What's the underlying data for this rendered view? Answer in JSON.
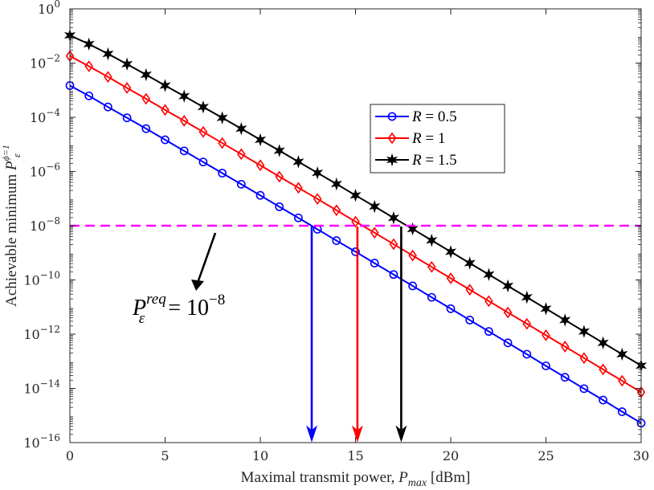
{
  "chart_data": {
    "type": "line",
    "y_scale": "log",
    "xlabel": "Maximal transmit power, P_max [dBm]",
    "xlabel_parts": {
      "pre": "Maximal transmit power, ",
      "var": "P",
      "sub": "max",
      "post": " [dBm]"
    },
    "ylabel_parts": {
      "pre": "Achievable minimum ",
      "var": "P",
      "sub": "ε",
      "sup": "ϕ=1"
    },
    "xlim": [
      0,
      30
    ],
    "ylim_exp": [
      -16,
      0
    ],
    "x_ticks": [
      0,
      5,
      10,
      15,
      20,
      25,
      30
    ],
    "y_tick_exps": [
      0,
      -2,
      -4,
      -6,
      -8,
      -10,
      -12,
      -14,
      -16
    ],
    "grid": false,
    "legend_position": "upper-right-inside",
    "x": [
      0,
      1,
      2,
      3,
      4,
      5,
      6,
      7,
      8,
      9,
      10,
      11,
      12,
      13,
      14,
      15,
      16,
      17,
      18,
      19,
      20,
      21,
      22,
      23,
      24,
      25,
      26,
      27,
      28,
      29,
      30
    ],
    "series": [
      {
        "name": "R = 0.5",
        "label_var": "R",
        "label_val": "= 0.5",
        "color": "#0000ff",
        "marker": "circle",
        "log10_values": [
          -2.83,
          -3.21,
          -3.62,
          -4.02,
          -4.42,
          -4.83,
          -5.24,
          -5.65,
          -6.06,
          -6.47,
          -6.88,
          -7.3,
          -7.71,
          -8.13,
          -8.55,
          -8.96,
          -9.38,
          -9.8,
          -10.22,
          -10.64,
          -11.06,
          -11.48,
          -11.9,
          -12.32,
          -12.74,
          -13.17,
          -13.59,
          -14.01,
          -14.43,
          -14.86,
          -15.28
        ]
      },
      {
        "name": "R = 1",
        "label_var": "R",
        "label_val": "= 1",
        "color": "#ff0000",
        "marker": "diamond",
        "log10_values": [
          -1.74,
          -2.12,
          -2.51,
          -2.92,
          -3.32,
          -3.73,
          -4.13,
          -4.54,
          -4.95,
          -5.36,
          -5.77,
          -6.19,
          -6.6,
          -7.01,
          -7.43,
          -7.85,
          -8.26,
          -8.68,
          -9.1,
          -9.52,
          -9.94,
          -10.36,
          -10.78,
          -11.2,
          -11.62,
          -12.04,
          -12.46,
          -12.88,
          -13.3,
          -13.72,
          -14.14
        ]
      },
      {
        "name": "R = 1.5",
        "label_var": "R",
        "label_val": "= 1.5",
        "color": "#000000",
        "marker": "star",
        "log10_values": [
          -0.98,
          -1.3,
          -1.66,
          -2.04,
          -2.43,
          -2.83,
          -3.22,
          -3.62,
          -4.02,
          -4.42,
          -4.83,
          -5.23,
          -5.64,
          -6.05,
          -6.46,
          -6.88,
          -7.29,
          -7.71,
          -8.12,
          -8.54,
          -8.96,
          -9.38,
          -9.8,
          -10.22,
          -10.64,
          -11.06,
          -11.48,
          -11.9,
          -12.32,
          -12.74,
          -13.16
        ]
      }
    ],
    "threshold": {
      "log10_value": -8,
      "color": "#ff00ff",
      "style": "dashed"
    },
    "threshold_label": {
      "var": "P",
      "sup": "req",
      "sub": "ε",
      "text": "= 10",
      "exp": "−8"
    },
    "arrows": [
      {
        "color": "#0000ff",
        "x": 12.7
      },
      {
        "color": "#ff0000",
        "x": 15.1
      },
      {
        "color": "#000000",
        "x": 17.4
      }
    ]
  }
}
